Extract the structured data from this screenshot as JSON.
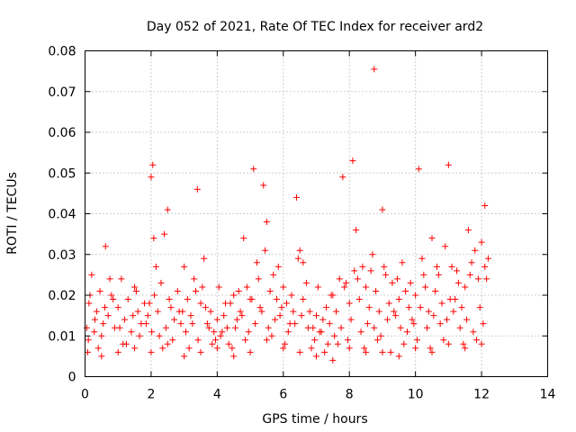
{
  "chart_data": {
    "type": "scatter",
    "title": "Day 052 of 2021, Rate Of TEC Index for receiver ard2",
    "xlabel": "GPS time / hours",
    "ylabel": "ROTI / TECUs",
    "xlim": [
      0,
      14
    ],
    "ylim": [
      0,
      0.08
    ],
    "xticks": [
      "0",
      "2",
      "4",
      "6",
      "8",
      "10",
      "12",
      "14"
    ],
    "yticks": [
      "0",
      "0.01",
      "0.02",
      "0.03",
      "0.04",
      "0.05",
      "0.06",
      "0.07",
      "0.08"
    ],
    "grid": true,
    "legend": "none",
    "marker": "plus",
    "color": "#ff0000",
    "series": [
      {
        "x": [
          0.05,
          0.12,
          0.2,
          0.28,
          0.35,
          0.45,
          0.55,
          0.62,
          0.7,
          0.8,
          0.9,
          1.0,
          1.1,
          1.2,
          1.3,
          1.4,
          1.5,
          1.6,
          1.7,
          1.8,
          1.9,
          2.0,
          2.05,
          2.1,
          2.2,
          2.3,
          2.4,
          2.5,
          2.6,
          2.7,
          2.8,
          2.9,
          3.0,
          3.1,
          3.2,
          3.3,
          3.4,
          3.5,
          3.6,
          3.7,
          3.8,
          3.9,
          4.0,
          4.1,
          4.2,
          4.3,
          4.4,
          4.5,
          4.6,
          4.7,
          4.8,
          4.9,
          5.0,
          5.1,
          5.2,
          5.3,
          5.4,
          5.5,
          5.6,
          5.7,
          5.8,
          5.9,
          6.0,
          6.1,
          6.2,
          6.3,
          6.4,
          6.5,
          6.6,
          6.7,
          6.8,
          6.9,
          7.0,
          7.1,
          7.2,
          7.3,
          7.4,
          7.5,
          7.6,
          7.7,
          7.8,
          7.9,
          8.0,
          8.1,
          8.2,
          8.3,
          8.4,
          8.5,
          8.6,
          8.7,
          8.8,
          8.9,
          9.0,
          9.1,
          9.2,
          9.3,
          9.4,
          9.5,
          9.6,
          9.7,
          9.8,
          9.9,
          10.0,
          10.1,
          10.2,
          10.3,
          10.4,
          10.5,
          10.6,
          10.7,
          10.8,
          10.9,
          11.0,
          11.1,
          11.2,
          11.3,
          11.4,
          11.5,
          11.6,
          11.7,
          11.8,
          11.9,
          12.0,
          12.1,
          12.2,
          0.1,
          0.3,
          0.5,
          0.6,
          0.75,
          1.05,
          1.25,
          1.45,
          1.65,
          1.85,
          2.02,
          2.08,
          2.25,
          2.45,
          2.65,
          2.85,
          3.05,
          3.25,
          3.42,
          3.55,
          3.75,
          3.95,
          4.15,
          4.35,
          4.55,
          4.75,
          4.95,
          5.05,
          5.15,
          5.35,
          5.45,
          5.55,
          5.75,
          5.95,
          6.15,
          6.35,
          6.45,
          6.55,
          6.75,
          6.95,
          7.15,
          7.35,
          7.55,
          7.75,
          7.95,
          8.05,
          8.15,
          8.35,
          8.55,
          8.75,
          8.95,
          9.15,
          9.35,
          9.55,
          9.75,
          9.95,
          10.05,
          10.15,
          10.35,
          10.55,
          10.75,
          10.95,
          11.05,
          11.15,
          11.35,
          11.55,
          11.75,
          11.95,
          12.05,
          12.15,
          0.15,
          0.4,
          0.85,
          1.15,
          1.55,
          1.95,
          2.15,
          2.35,
          2.55,
          2.95,
          3.15,
          3.35,
          3.65,
          3.85,
          4.05,
          4.25,
          4.45,
          4.65,
          4.85,
          5.25,
          5.65,
          5.85,
          6.05,
          6.25,
          6.6,
          6.85,
          7.05,
          7.25,
          7.45,
          7.65,
          7.85,
          8.25,
          8.45,
          8.65,
          8.85,
          9.05,
          9.25,
          9.45,
          9.65,
          9.85,
          10.25,
          10.45,
          10.65,
          10.85,
          11.25,
          11.45,
          11.65,
          11.85,
          12.1,
          0.08,
          0.5,
          1.0,
          1.5,
          2.0,
          2.5,
          3.0,
          3.5,
          4.0,
          4.5,
          5.0,
          5.5,
          6.0,
          6.5,
          7.0,
          7.5,
          8.0,
          8.5,
          9.0,
          9.5,
          10.0,
          10.5,
          11.0,
          11.5,
          12.0
        ],
        "y": [
          0.012,
          0.018,
          0.025,
          0.011,
          0.016,
          0.021,
          0.013,
          0.032,
          0.015,
          0.02,
          0.012,
          0.017,
          0.024,
          0.014,
          0.019,
          0.011,
          0.022,
          0.016,
          0.013,
          0.018,
          0.015,
          0.049,
          0.052,
          0.02,
          0.016,
          0.023,
          0.035,
          0.041,
          0.017,
          0.014,
          0.021,
          0.013,
          0.027,
          0.019,
          0.015,
          0.024,
          0.046,
          0.018,
          0.029,
          0.013,
          0.016,
          0.011,
          0.014,
          0.01,
          0.015,
          0.012,
          0.018,
          0.02,
          0.014,
          0.016,
          0.034,
          0.022,
          0.019,
          0.051,
          0.028,
          0.017,
          0.047,
          0.038,
          0.021,
          0.025,
          0.019,
          0.015,
          0.022,
          0.018,
          0.013,
          0.016,
          0.044,
          0.031,
          0.019,
          0.023,
          0.016,
          0.012,
          0.015,
          0.011,
          0.014,
          0.017,
          0.013,
          0.02,
          0.016,
          0.024,
          0.049,
          0.023,
          0.018,
          0.053,
          0.036,
          0.019,
          0.027,
          0.022,
          0.017,
          0.03,
          0.021,
          0.016,
          0.041,
          0.025,
          0.018,
          0.023,
          0.015,
          0.019,
          0.028,
          0.021,
          0.017,
          0.014,
          0.02,
          0.051,
          0.029,
          0.022,
          0.016,
          0.034,
          0.021,
          0.025,
          0.018,
          0.032,
          0.052,
          0.027,
          0.019,
          0.023,
          0.017,
          0.022,
          0.036,
          0.028,
          0.031,
          0.024,
          0.033,
          0.042,
          0.029,
          0.009,
          0.014,
          0.01,
          0.017,
          0.024,
          0.012,
          0.008,
          0.015,
          0.01,
          0.013,
          0.011,
          0.034,
          0.01,
          0.012,
          0.009,
          0.016,
          0.011,
          0.013,
          0.009,
          0.022,
          0.012,
          0.009,
          0.011,
          0.008,
          0.012,
          0.015,
          0.011,
          0.019,
          0.013,
          0.016,
          0.031,
          0.012,
          0.014,
          0.017,
          0.011,
          0.013,
          0.029,
          0.015,
          0.012,
          0.009,
          0.011,
          0.008,
          0.01,
          0.012,
          0.009,
          0.014,
          0.026,
          0.011,
          0.013,
          0.012,
          0.01,
          0.014,
          0.016,
          0.012,
          0.011,
          0.013,
          0.009,
          0.017,
          0.012,
          0.015,
          0.013,
          0.014,
          0.019,
          0.016,
          0.012,
          0.014,
          0.011,
          0.017,
          0.013,
          0.024,
          0.02,
          0.007,
          0.019,
          0.008,
          0.021,
          0.018,
          0.027,
          0.007,
          0.019,
          0.016,
          0.007,
          0.021,
          0.017,
          0.008,
          0.022,
          0.018,
          0.007,
          0.021,
          0.009,
          0.024,
          0.01,
          0.027,
          0.008,
          0.02,
          0.028,
          0.007,
          0.022,
          0.006,
          0.02,
          0.008,
          0.022,
          0.024,
          0.007,
          0.026,
          0.009,
          0.027,
          0.006,
          0.024,
          0.008,
          0.023,
          0.025,
          0.007,
          0.027,
          0.009,
          0.026,
          0.008,
          0.025,
          0.009,
          0.027,
          0.006,
          0.005,
          0.006,
          0.007,
          0.006,
          0.008,
          0.005,
          0.006,
          0.007,
          0.005,
          0.006,
          0.009,
          0.007,
          0.006,
          0.005,
          0.004,
          0.007,
          0.006,
          0.006,
          0.005,
          0.007,
          0.006,
          0.008,
          0.007,
          0.008
        ]
      },
      {
        "x": [
          8.75
        ],
        "y": [
          0.0755
        ]
      }
    ]
  }
}
